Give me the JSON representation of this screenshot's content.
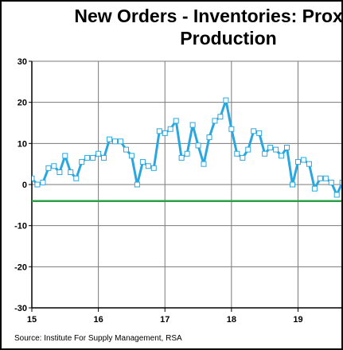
{
  "chart_data": {
    "type": "line",
    "title": "New Orders - Inventories: Proxy for Production",
    "source": "Source:  Institute For Supply Management, RSA",
    "xlim": [
      2015.0,
      2019.7
    ],
    "ylim": [
      -30,
      30
    ],
    "y_ticks": [
      "30",
      "20",
      "10",
      "0",
      "-10",
      "-20",
      "-30"
    ],
    "x_ticks": [
      {
        "label": "15",
        "value": 2015
      },
      {
        "label": "16",
        "value": 2016
      },
      {
        "label": "17",
        "value": 2017
      },
      {
        "label": "18",
        "value": 2018
      },
      {
        "label": "19",
        "value": 2019
      }
    ],
    "grid": true,
    "series": [
      {
        "color": "#2aa7df",
        "marker": "open-square",
        "x": [
          2015.0,
          2015.083,
          2015.167,
          2015.25,
          2015.333,
          2015.417,
          2015.5,
          2015.583,
          2015.667,
          2015.75,
          2015.833,
          2015.917,
          2016.0,
          2016.083,
          2016.167,
          2016.25,
          2016.333,
          2016.417,
          2016.5,
          2016.583,
          2016.667,
          2016.75,
          2016.833,
          2016.917,
          2017.0,
          2017.083,
          2017.167,
          2017.25,
          2017.333,
          2017.417,
          2017.5,
          2017.583,
          2017.667,
          2017.75,
          2017.833,
          2017.917,
          2018.0,
          2018.083,
          2018.167,
          2018.25,
          2018.333,
          2018.417,
          2018.5,
          2018.583,
          2018.667,
          2018.75,
          2018.833,
          2018.917,
          2019.0,
          2019.083,
          2019.167,
          2019.25,
          2019.333,
          2019.417,
          2019.5,
          2019.583,
          2019.667
        ],
        "y": [
          1.5,
          0,
          0.5,
          4,
          4.5,
          3,
          7,
          3,
          1.5,
          5.5,
          6.5,
          6.5,
          7.5,
          6.5,
          11,
          10.5,
          10.5,
          8.5,
          7,
          0,
          5.5,
          4.5,
          4,
          13,
          12.5,
          13.5,
          15.5,
          6.5,
          7.5,
          14.5,
          9.5,
          5,
          11.5,
          15.5,
          16.5,
          20.5,
          13.5,
          7.5,
          6.5,
          8.5,
          13,
          12.5,
          7.5,
          9,
          8.5,
          7,
          9,
          0,
          5.5,
          6,
          5,
          -1,
          1.5,
          1.5,
          0.5,
          -2.5,
          0.5
        ]
      },
      {
        "color": "#2e9e4a",
        "x": [
          2015.0,
          2019.7
        ],
        "y": [
          -4,
          -4
        ]
      }
    ]
  }
}
